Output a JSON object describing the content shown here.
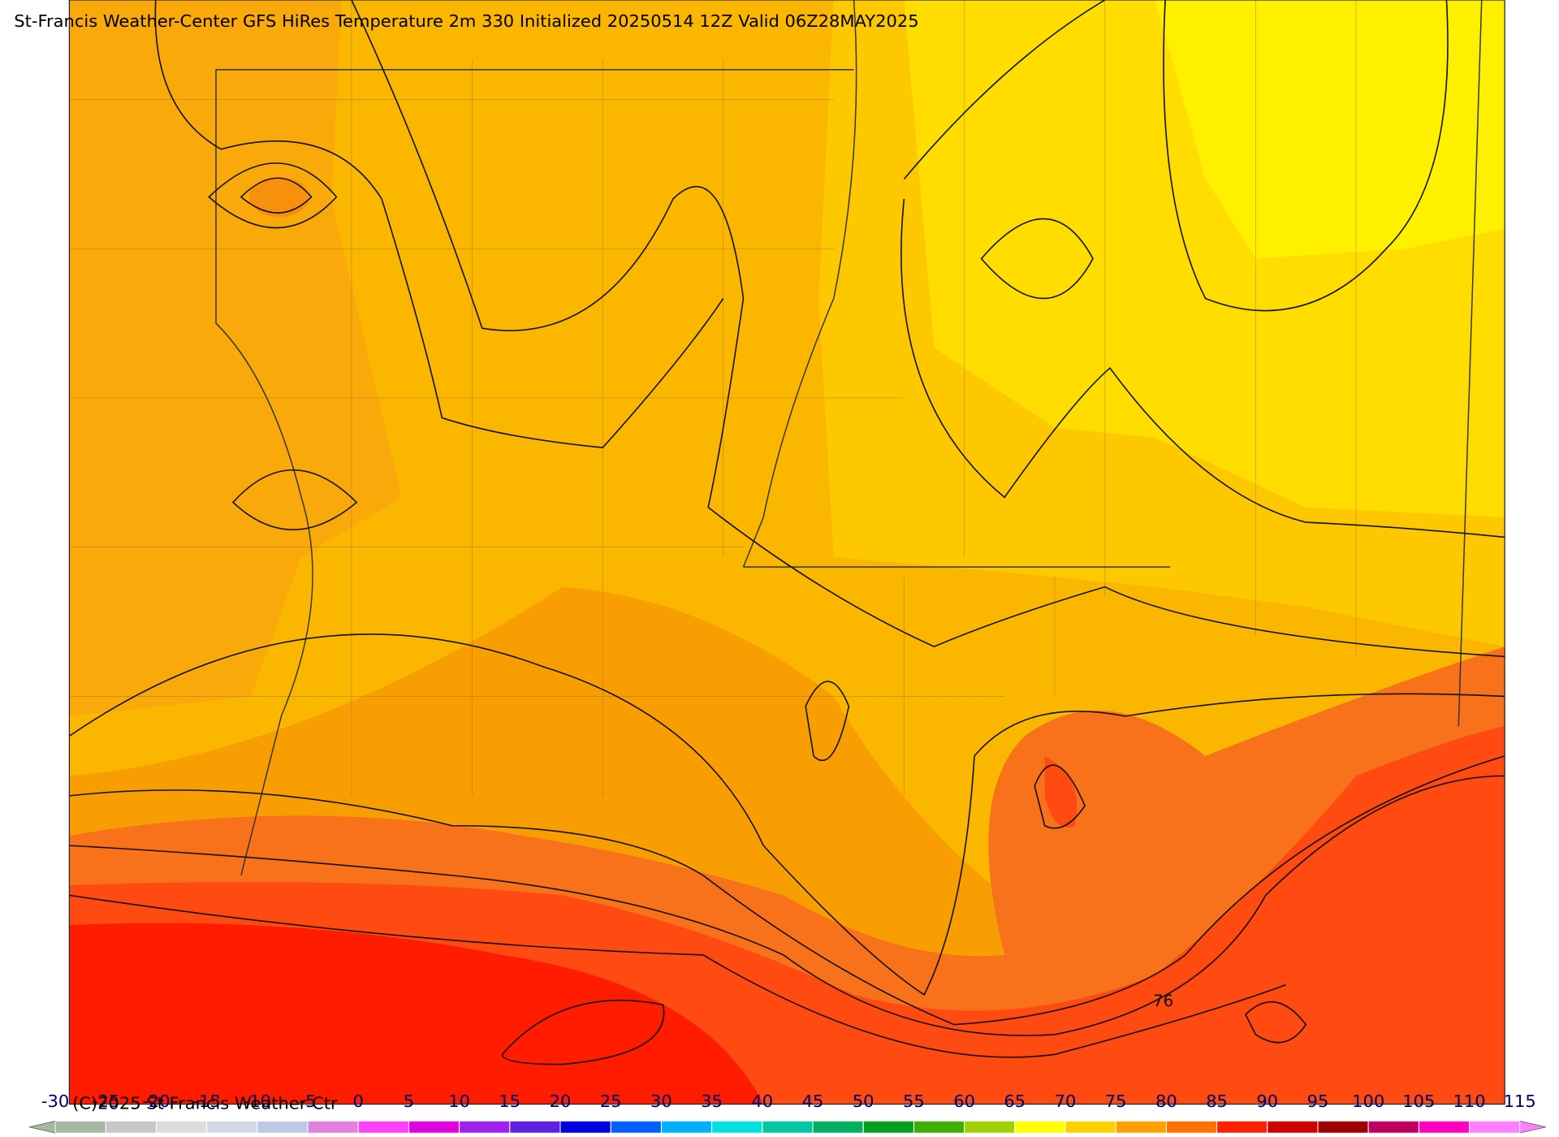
{
  "header": {
    "title": "St-Francis Weather-Center GFS HiRes Temperature 2m  330 Initialized 20250514 12Z Valid 06Z28MAY2025"
  },
  "map": {
    "contour_label": 76
  },
  "colorbar": {
    "ticks": [
      -30,
      -25,
      -20,
      -15,
      -10,
      -5,
      0,
      5,
      10,
      15,
      20,
      25,
      30,
      35,
      40,
      45,
      50,
      55,
      60,
      65,
      70,
      75,
      80,
      85,
      90,
      95,
      100,
      105,
      110,
      115
    ],
    "colors": [
      "#a6b8a0",
      "#c8c8c8",
      "#dcdcdc",
      "#d0d8e8",
      "#c0c8e8",
      "#e080e0",
      "#ff40ff",
      "#e000e0",
      "#a020f0",
      "#6020e0",
      "#0000e0",
      "#0060ff",
      "#00b0ff",
      "#00e0e0",
      "#00c8a0",
      "#00b060",
      "#00a020",
      "#40b000",
      "#a0d000",
      "#ffff00",
      "#ffd000",
      "#ffa000",
      "#ff7000",
      "#ff2000",
      "#d00000",
      "#a00000",
      "#c00060",
      "#ff00c0",
      "#ff80ff"
    ]
  },
  "footer": {
    "copyright": "(C)2025 St Francis Weather Ctr"
  }
}
